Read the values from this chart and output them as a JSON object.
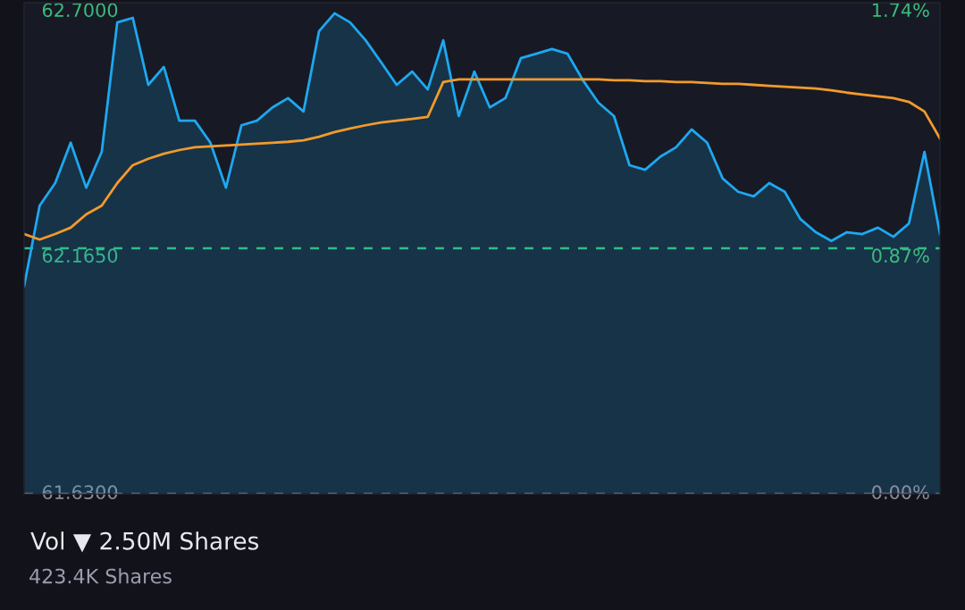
{
  "chart_data": {
    "type": "area",
    "categories": [
      null,
      null,
      null,
      null,
      null,
      null,
      null,
      null,
      null,
      null,
      null,
      null,
      null,
      null,
      null,
      null,
      null,
      null,
      null,
      null,
      null,
      null,
      null,
      null,
      null,
      null,
      null,
      null,
      null,
      null,
      null,
      null,
      null,
      null,
      null,
      null,
      null,
      null,
      null,
      null,
      null,
      null,
      null,
      null,
      null,
      null,
      null,
      null,
      null,
      null,
      null,
      null,
      null,
      null,
      null,
      null,
      null,
      null,
      null,
      null
    ],
    "series": [
      {
        "color": "#1ea8f0",
        "values": [
          62.083,
          62.258,
          62.307,
          62.395,
          62.297,
          62.375,
          62.657,
          62.667,
          62.521,
          62.56,
          62.443,
          62.443,
          62.395,
          62.297,
          62.433,
          62.443,
          62.472,
          62.492,
          62.463,
          62.638,
          62.677,
          62.657,
          62.618,
          62.57,
          62.521,
          62.55,
          62.511,
          62.618,
          62.453,
          62.55,
          62.472,
          62.492,
          62.579,
          62.589,
          62.599,
          62.589,
          62.531,
          62.482,
          62.453,
          62.346,
          62.336,
          62.365,
          62.385,
          62.424,
          62.395,
          62.317,
          62.288,
          62.278,
          62.307,
          62.288,
          62.229,
          62.2,
          62.181,
          62.2,
          62.196,
          62.21,
          62.19,
          62.219,
          62.375,
          62.196
        ]
      },
      {
        "type": "line",
        "color": "#f39a2c",
        "values": [
          62.196,
          62.184,
          62.196,
          62.21,
          62.239,
          62.258,
          62.307,
          62.346,
          62.36,
          62.371,
          62.379,
          62.385,
          62.387,
          62.389,
          62.391,
          62.393,
          62.395,
          62.397,
          62.4,
          62.408,
          62.418,
          62.426,
          62.433,
          62.439,
          62.443,
          62.447,
          62.451,
          62.527,
          62.533,
          62.533,
          62.533,
          62.533,
          62.533,
          62.533,
          62.533,
          62.533,
          62.533,
          62.533,
          62.531,
          62.531,
          62.529,
          62.529,
          62.527,
          62.527,
          62.525,
          62.523,
          62.523,
          62.521,
          62.519,
          62.517,
          62.515,
          62.513,
          62.509,
          62.504,
          62.5,
          62.496,
          62.492,
          62.484,
          62.463,
          62.404
        ]
      }
    ],
    "ylim": [
      61.63,
      62.7
    ],
    "yticks": [
      {
        "value": 61.63,
        "label": "61.6300"
      },
      {
        "value": 62.165,
        "label": "62.1650"
      },
      {
        "value": 62.7,
        "label": "62.7000"
      }
    ],
    "y2lim": [
      0,
      1.74
    ],
    "y2ticks": [
      {
        "value": 0,
        "label": "0.00%"
      },
      {
        "value": 0.87,
        "label": "0.87%"
      },
      {
        "value": 1.74,
        "label": "1.74%"
      }
    ],
    "ref_lines": [
      {
        "axis": "y",
        "value": 62.165,
        "color": "#2ebd85",
        "line_style": "dashed"
      },
      {
        "axis": "y",
        "value": 61.63,
        "color": "#8a8d9c",
        "line_style": "dashed"
      }
    ],
    "annotations": [
      "Vol ▼ 2.50M Shares",
      "423.4K Shares"
    ],
    "grid": false,
    "legend": false,
    "tick_labels": "y"
  }
}
